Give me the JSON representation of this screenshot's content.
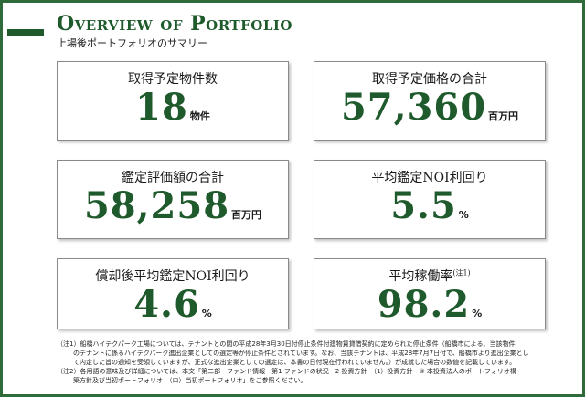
{
  "header": {
    "title": "Overview of Portfolio",
    "subtitle": "上場後ポートフォリオのサマリー",
    "accent_color": "#1f5a2c"
  },
  "cards": [
    {
      "label": "取得予定物件数",
      "label_note": "",
      "value": "18",
      "unit": "物件"
    },
    {
      "label": "取得予定価格の合計",
      "label_note": "",
      "value": "57,360",
      "unit": "百万円"
    },
    {
      "label": "鑑定評価額の合計",
      "label_note": "",
      "value": "58,258",
      "unit": "百万円"
    },
    {
      "label": "平均鑑定NOI利回り",
      "label_note": "",
      "value": "5.5",
      "unit": "%"
    },
    {
      "label": "償却後平均鑑定NOI利回り",
      "label_note": "",
      "value": "4.6",
      "unit": "%"
    },
    {
      "label": "平均稼働率",
      "label_note": "(注1)",
      "value": "98.2",
      "unit": "%"
    }
  ],
  "notes": [
    "（注1）船橋ハイテクパーク工場については、テナントとの間の平成28年3月30日付停止条件付建物賃貸借契約に定められた停止条件（船橋市による、当該物件",
    "のテナントに係るハイテクパーク進出企業としての選定等が停止条件とされています。なお、当該テナントは、平成28年7月7日付で、船橋市より進出企業とし",
    "て内定した旨の通知を受領していますが、正式な進出企業としての選定は、本書の日付現在行われていません。）が成就した場合の数値を記載しています。",
    "（注2）各用語の意味及び詳細については、本文「第二部　ファンド情報　第1 ファンドの状況　2 投資方針　（1）投資方針　③ 本投資法人のポートフォリオ構",
    "築方針及び当初ポートフォリオ　（ロ）当初ポートフォリオ」をご参照ください。"
  ]
}
